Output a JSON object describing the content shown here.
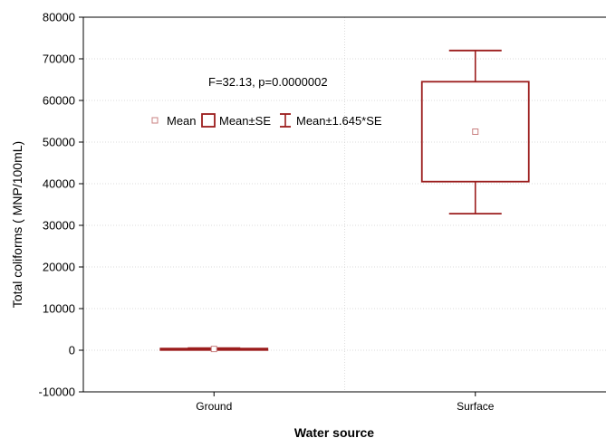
{
  "chart_data": {
    "type": "box",
    "xlabel": "Water source",
    "ylabel": "Total coliforms ( MNP/100mL)",
    "ylim": [
      -10000,
      80000
    ],
    "yticks": [
      -10000,
      0,
      10000,
      20000,
      30000,
      40000,
      50000,
      60000,
      70000,
      80000
    ],
    "grid": true,
    "annotation": "F=32.13, p=0.0000002",
    "legend": {
      "placement": "top-left",
      "entries": [
        {
          "label": "Mean",
          "marker": "small-square"
        },
        {
          "label": "Mean±SE",
          "marker": "box"
        },
        {
          "label": "Mean±1.645*SE",
          "marker": "whisker"
        }
      ]
    },
    "categories": [
      "Ground",
      "Surface"
    ],
    "boxes": [
      {
        "category": "Ground",
        "mean": 300,
        "se_low": 200,
        "se_high": 400,
        "ci_low": 100,
        "ci_high": 500
      },
      {
        "category": "Surface",
        "mean": 52500,
        "se_low": 40500,
        "se_high": 64500,
        "ci_low": 32800,
        "ci_high": 72000
      }
    ],
    "color": "#9b1c1c",
    "mean_color": "#c98080"
  }
}
